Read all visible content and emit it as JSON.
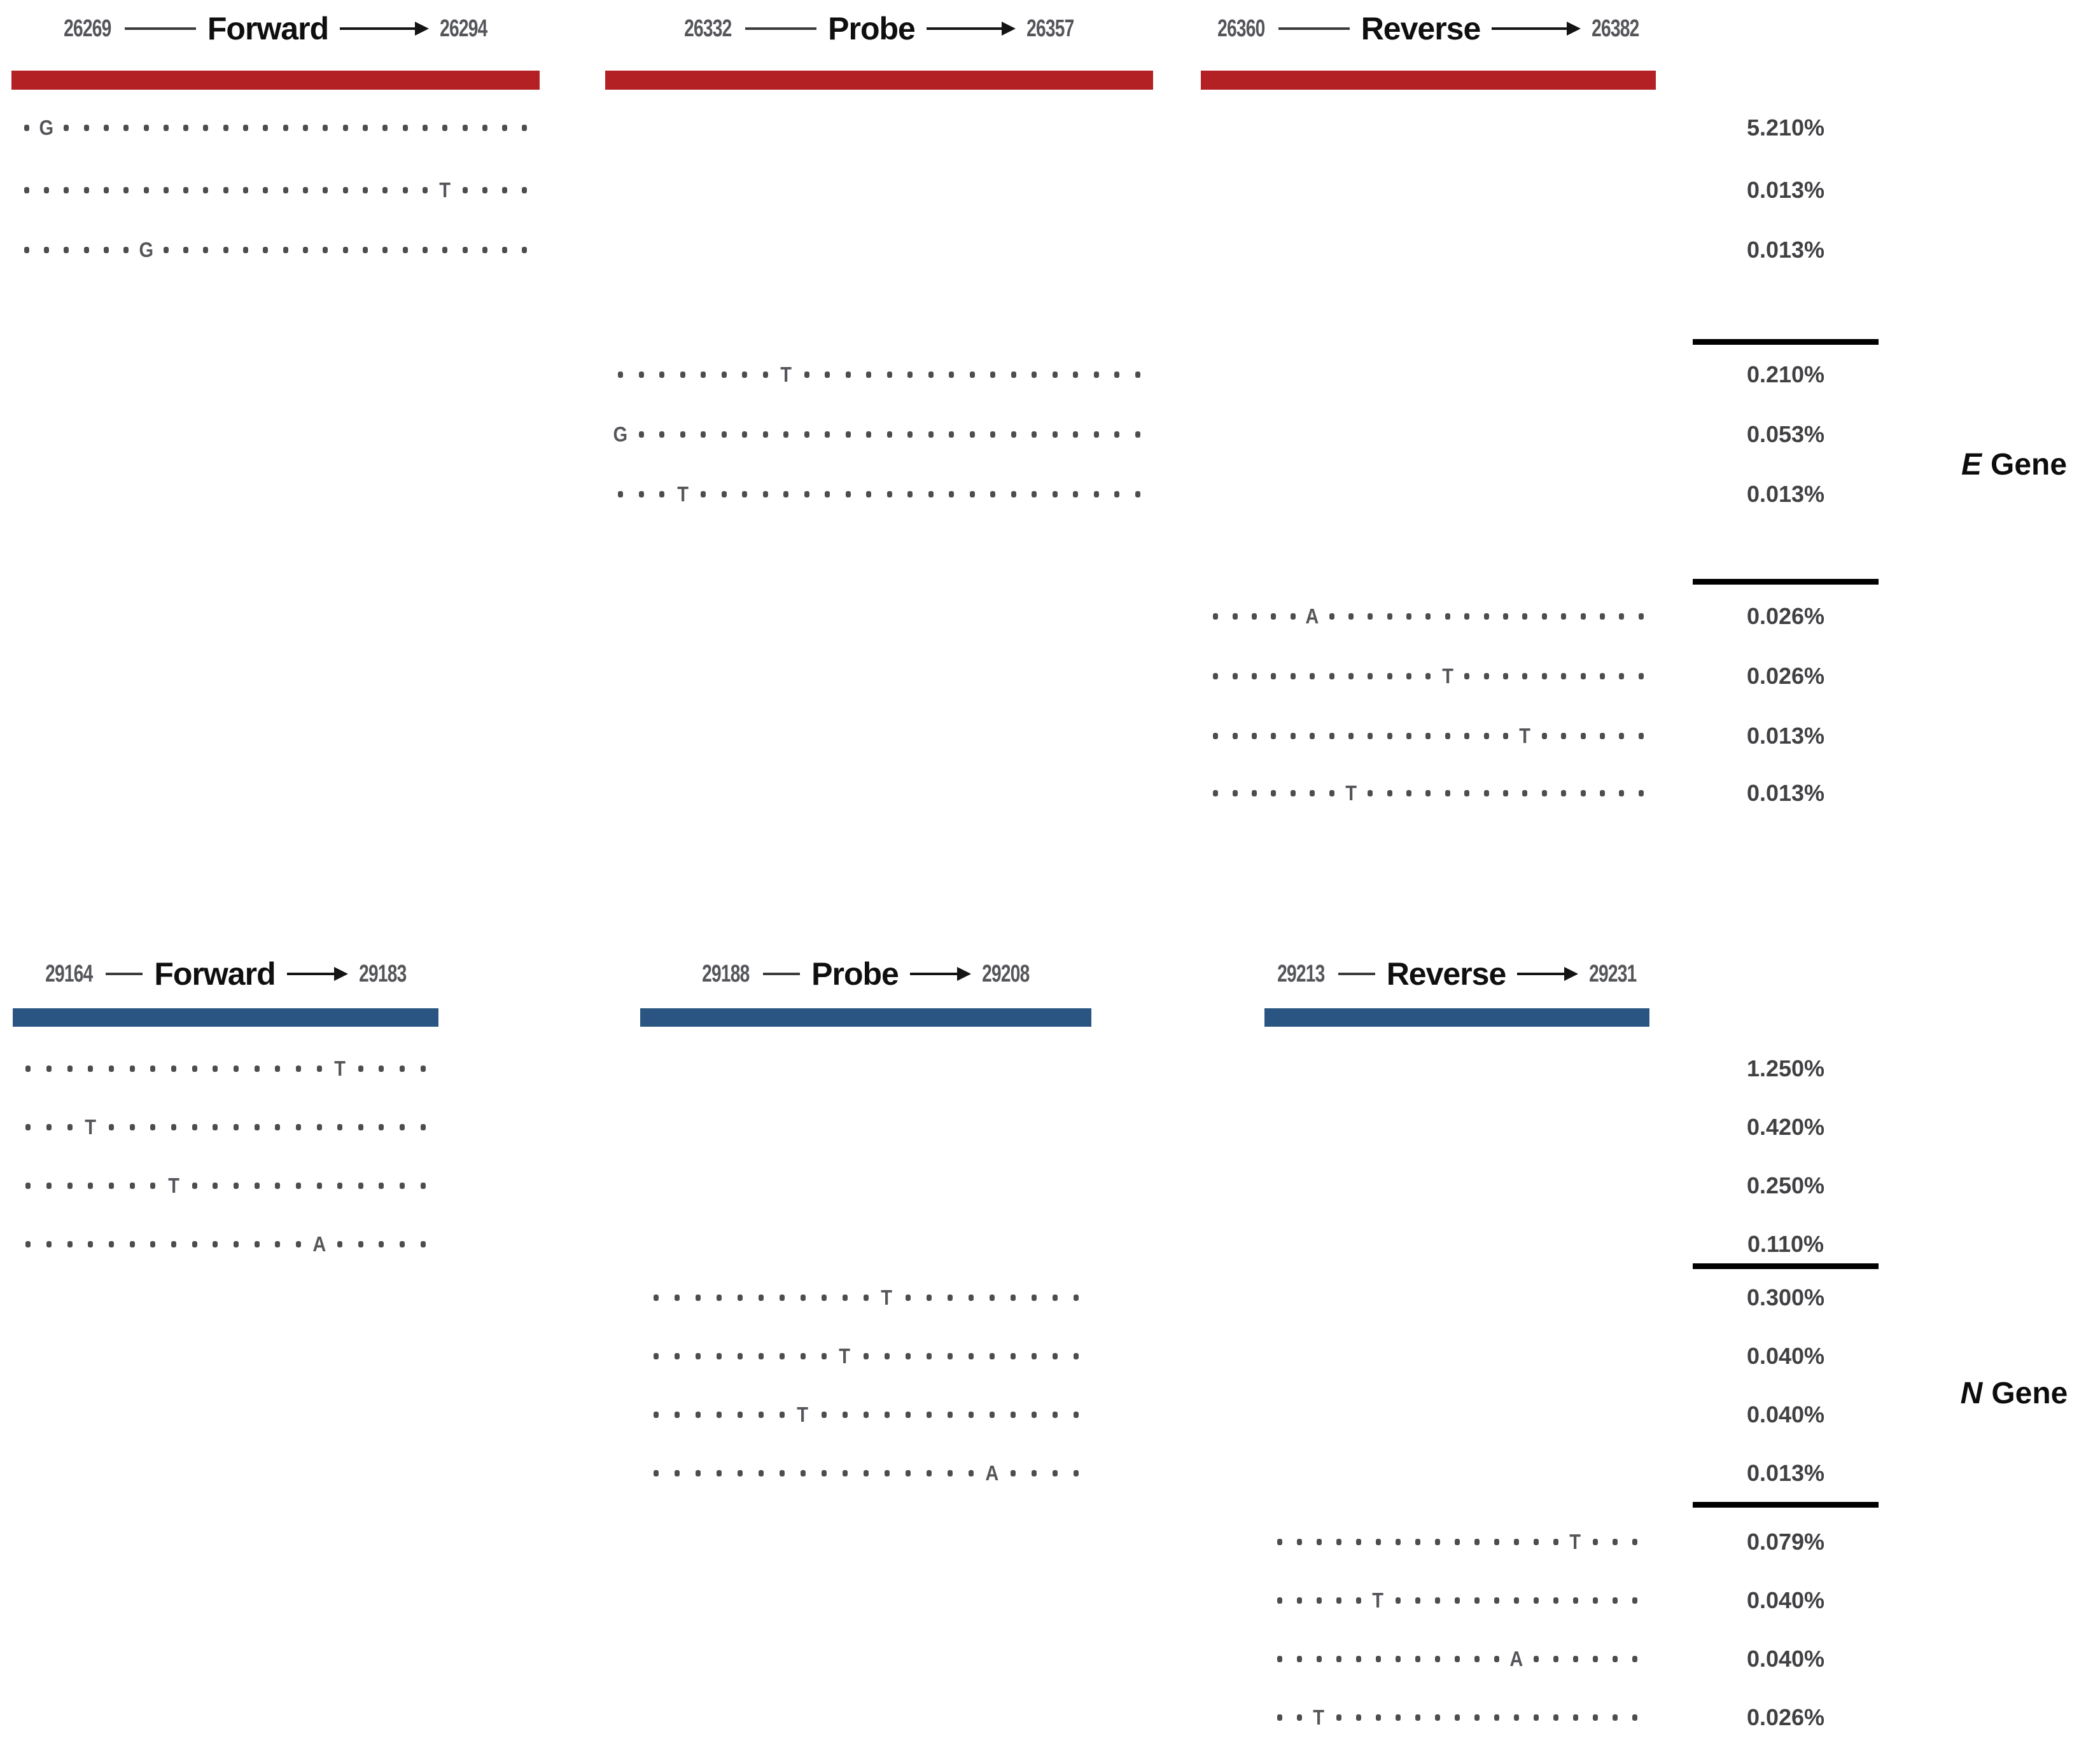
{
  "figure": {
    "background": "#ffffff",
    "dot_color": "#4c4d4f",
    "separator_color": "#000000",
    "genes": [
      {
        "name": "E Gene",
        "label_italic": "E",
        "label_word": "Gene",
        "bar_color": "#b42125",
        "primers": [
          {
            "label": "Forward",
            "start": "26269",
            "end": "26294"
          },
          {
            "label": "Probe",
            "start": "26332",
            "end": "26357"
          },
          {
            "label": "Reverse",
            "start": "26360",
            "end": "26382"
          }
        ],
        "mutation_groups": [
          {
            "primer": "Forward",
            "rows": [
              {
                "pattern": ".G........................",
                "frequency": "5.210%"
              },
              {
                "pattern": ".....................T....",
                "frequency": "0.013%"
              },
              {
                "pattern": "......G...................",
                "frequency": "0.013%"
              }
            ]
          },
          {
            "primer": "Probe",
            "rows": [
              {
                "pattern": "........T.................",
                "frequency": "0.210%"
              },
              {
                "pattern": "G.........................",
                "frequency": "0.053%"
              },
              {
                "pattern": "...T......................",
                "frequency": "0.013%"
              }
            ]
          },
          {
            "primer": "Reverse",
            "rows": [
              {
                "pattern": ".....A.................",
                "frequency": "0.026%"
              },
              {
                "pattern": "............T..........",
                "frequency": "0.026%"
              },
              {
                "pattern": "................T......",
                "frequency": "0.013%"
              },
              {
                "pattern": ".......T...............",
                "frequency": "0.013%"
              }
            ]
          }
        ]
      },
      {
        "name": "N Gene",
        "label_italic": "N",
        "label_word": "Gene",
        "bar_color": "#2a5582",
        "primers": [
          {
            "label": "Forward",
            "start": "29164",
            "end": "29183"
          },
          {
            "label": "Probe",
            "start": "29188",
            "end": "29208"
          },
          {
            "label": "Reverse",
            "start": "29213",
            "end": "29231"
          }
        ],
        "mutation_groups": [
          {
            "primer": "Forward",
            "rows": [
              {
                "pattern": "...............T....",
                "frequency": "1.250%"
              },
              {
                "pattern": "...T................",
                "frequency": "0.420%"
              },
              {
                "pattern": ".......T............",
                "frequency": "0.250%"
              },
              {
                "pattern": "..............A.....",
                "frequency": "0.110%"
              }
            ]
          },
          {
            "primer": "Probe",
            "rows": [
              {
                "pattern": "...........T.........",
                "frequency": "0.300%"
              },
              {
                "pattern": ".........T...........",
                "frequency": "0.040%"
              },
              {
                "pattern": ".......T.............",
                "frequency": "0.040%"
              },
              {
                "pattern": "................A....",
                "frequency": "0.013%"
              }
            ]
          },
          {
            "primer": "Reverse",
            "rows": [
              {
                "pattern": "...............T...",
                "frequency": "0.079%"
              },
              {
                "pattern": ".....T.............",
                "frequency": "0.040%"
              },
              {
                "pattern": "............A......",
                "frequency": "0.040%"
              },
              {
                "pattern": "..T................",
                "frequency": "0.026%"
              }
            ]
          }
        ]
      }
    ]
  },
  "chart_data": {
    "type": "table",
    "title": "SARS-CoV-2 E and N gene primer/probe binding-site mutations and their frequencies",
    "columns": [
      "gene",
      "primer_region",
      "genomic_start",
      "genomic_end",
      "mutation_position_in_region",
      "mutant_base",
      "frequency"
    ],
    "rows": [
      {
        "gene": "E",
        "primer_region": "Forward",
        "genomic_start": 26269,
        "genomic_end": 26294,
        "mutation_position_in_region": 2,
        "mutant_base": "G",
        "frequency": "5.210%"
      },
      {
        "gene": "E",
        "primer_region": "Forward",
        "genomic_start": 26269,
        "genomic_end": 26294,
        "mutation_position_in_region": 22,
        "mutant_base": "T",
        "frequency": "0.013%"
      },
      {
        "gene": "E",
        "primer_region": "Forward",
        "genomic_start": 26269,
        "genomic_end": 26294,
        "mutation_position_in_region": 7,
        "mutant_base": "G",
        "frequency": "0.013%"
      },
      {
        "gene": "E",
        "primer_region": "Probe",
        "genomic_start": 26332,
        "genomic_end": 26357,
        "mutation_position_in_region": 9,
        "mutant_base": "T",
        "frequency": "0.210%"
      },
      {
        "gene": "E",
        "primer_region": "Probe",
        "genomic_start": 26332,
        "genomic_end": 26357,
        "mutation_position_in_region": 1,
        "mutant_base": "G",
        "frequency": "0.053%"
      },
      {
        "gene": "E",
        "primer_region": "Probe",
        "genomic_start": 26332,
        "genomic_end": 26357,
        "mutation_position_in_region": 4,
        "mutant_base": "T",
        "frequency": "0.013%"
      },
      {
        "gene": "E",
        "primer_region": "Reverse",
        "genomic_start": 26360,
        "genomic_end": 26382,
        "mutation_position_in_region": 6,
        "mutant_base": "A",
        "frequency": "0.026%"
      },
      {
        "gene": "E",
        "primer_region": "Reverse",
        "genomic_start": 26360,
        "genomic_end": 26382,
        "mutation_position_in_region": 13,
        "mutant_base": "T",
        "frequency": "0.026%"
      },
      {
        "gene": "E",
        "primer_region": "Reverse",
        "genomic_start": 26360,
        "genomic_end": 26382,
        "mutation_position_in_region": 17,
        "mutant_base": "T",
        "frequency": "0.013%"
      },
      {
        "gene": "E",
        "primer_region": "Reverse",
        "genomic_start": 26360,
        "genomic_end": 26382,
        "mutation_position_in_region": 8,
        "mutant_base": "T",
        "frequency": "0.013%"
      },
      {
        "gene": "N",
        "primer_region": "Forward",
        "genomic_start": 29164,
        "genomic_end": 29183,
        "mutation_position_in_region": 16,
        "mutant_base": "T",
        "frequency": "1.250%"
      },
      {
        "gene": "N",
        "primer_region": "Forward",
        "genomic_start": 29164,
        "genomic_end": 29183,
        "mutation_position_in_region": 4,
        "mutant_base": "T",
        "frequency": "0.420%"
      },
      {
        "gene": "N",
        "primer_region": "Forward",
        "genomic_start": 29164,
        "genomic_end": 29183,
        "mutation_position_in_region": 8,
        "mutant_base": "T",
        "frequency": "0.250%"
      },
      {
        "gene": "N",
        "primer_region": "Forward",
        "genomic_start": 29164,
        "genomic_end": 29183,
        "mutation_position_in_region": 15,
        "mutant_base": "A",
        "frequency": "0.110%"
      },
      {
        "gene": "N",
        "primer_region": "Probe",
        "genomic_start": 29188,
        "genomic_end": 29208,
        "mutation_position_in_region": 12,
        "mutant_base": "T",
        "frequency": "0.300%"
      },
      {
        "gene": "N",
        "primer_region": "Probe",
        "genomic_start": 29188,
        "genomic_end": 29208,
        "mutation_position_in_region": 10,
        "mutant_base": "T",
        "frequency": "0.040%"
      },
      {
        "gene": "N",
        "primer_region": "Probe",
        "genomic_start": 29188,
        "genomic_end": 29208,
        "mutation_position_in_region": 8,
        "mutant_base": "T",
        "frequency": "0.040%"
      },
      {
        "gene": "N",
        "primer_region": "Probe",
        "genomic_start": 29188,
        "genomic_end": 29208,
        "mutation_position_in_region": 17,
        "mutant_base": "A",
        "frequency": "0.013%"
      },
      {
        "gene": "N",
        "primer_region": "Reverse",
        "genomic_start": 29213,
        "genomic_end": 29231,
        "mutation_position_in_region": 16,
        "mutant_base": "T",
        "frequency": "0.079%"
      },
      {
        "gene": "N",
        "primer_region": "Reverse",
        "genomic_start": 29213,
        "genomic_end": 29231,
        "mutation_position_in_region": 6,
        "mutant_base": "T",
        "frequency": "0.040%"
      },
      {
        "gene": "N",
        "primer_region": "Reverse",
        "genomic_start": 29213,
        "genomic_end": 29231,
        "mutation_position_in_region": 13,
        "mutant_base": "A",
        "frequency": "0.040%"
      },
      {
        "gene": "N",
        "primer_region": "Reverse",
        "genomic_start": 29213,
        "genomic_end": 29231,
        "mutation_position_in_region": 3,
        "mutant_base": "T",
        "frequency": "0.026%"
      }
    ]
  }
}
